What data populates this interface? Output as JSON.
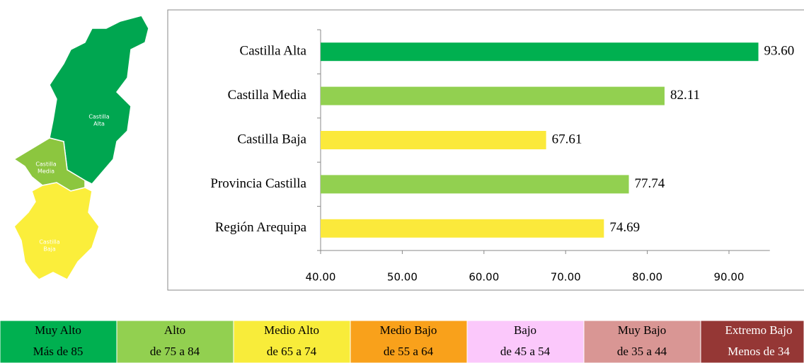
{
  "chart_data": {
    "type": "barh",
    "categories": [
      "Castilla Alta",
      "Castilla Media",
      "Castilla Baja",
      "Provincia Castilla",
      "Región Arequipa"
    ],
    "values": [
      93.6,
      82.11,
      67.61,
      77.74,
      74.69
    ],
    "value_labels": [
      "93.60",
      "82.11",
      "67.61",
      "77.74",
      "74.69"
    ],
    "colors": [
      "#00b050",
      "#92d050",
      "#fbe93b",
      "#92d050",
      "#fbe93b"
    ],
    "xlim": [
      40,
      95
    ],
    "xticks": [
      {
        "value": 40,
        "label": "40.00"
      },
      {
        "value": 50,
        "label": "50.00"
      },
      {
        "value": 60,
        "label": "60.00"
      },
      {
        "value": 70,
        "label": "70.00"
      },
      {
        "value": 80,
        "label": "80.00"
      },
      {
        "value": 90,
        "label": "90.00"
      }
    ]
  },
  "map": {
    "regions": [
      {
        "lines": [
          "Castilla",
          "Alta"
        ],
        "color": "#00a650"
      },
      {
        "lines": [
          "Castilla",
          "Media"
        ],
        "color": "#8cc63f"
      },
      {
        "lines": [
          "Castilla",
          "Baja"
        ],
        "color": "#fbee3b"
      }
    ]
  },
  "legend": [
    {
      "name": "Muy Alto",
      "range": "Más de 85",
      "color": "#00b050"
    },
    {
      "name": "Alto",
      "range": "de 75 a 84",
      "color": "#92d050"
    },
    {
      "name": "Medio Alto",
      "range": "de 65 a 74",
      "color": "#f8ec3a"
    },
    {
      "name": "Medio Bajo",
      "range": "de 55 a 64",
      "color": "#f9a11b"
    },
    {
      "name": "Bajo",
      "range": "de 45 a 54",
      "color": "#fbc8fb"
    },
    {
      "name": "Muy Bajo",
      "range": "de 35 a 44",
      "color": "#d99694"
    },
    {
      "name": "Extremo Bajo",
      "range": "Menos de 34",
      "color": "#953735"
    }
  ]
}
